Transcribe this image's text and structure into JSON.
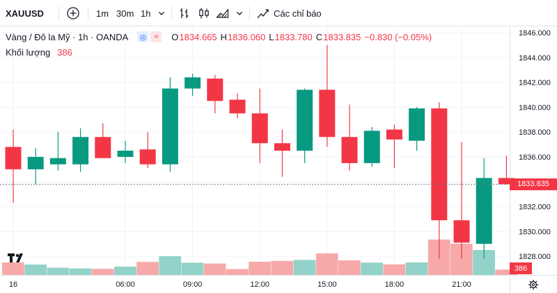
{
  "toolbar": {
    "symbol": "XAUUSD",
    "add_symbol_icon": "plus-circle-icon",
    "intervals": [
      "1m",
      "30m",
      "1h"
    ],
    "interval_menu_icon": "chevron-down-icon",
    "chart_type_icons": [
      "bar-chart-icon",
      "candles-icon",
      "area-chart-icon"
    ],
    "chart_type_menu_icon": "chevron-down-icon",
    "indicators_icon": "indicators-icon",
    "indicators_label": "Các chỉ báo"
  },
  "legend": {
    "title": "Vàng / Đô la Mỹ · 1h · OANDA",
    "badges": [
      "◎",
      "≈"
    ],
    "ohlc": [
      {
        "label": "O",
        "value": "1834.665"
      },
      {
        "label": "H",
        "value": "1836.060"
      },
      {
        "label": "L",
        "value": "1833.780"
      },
      {
        "label": "C",
        "value": "1833.835"
      }
    ],
    "change": "−0.830 (−0.05%)",
    "volume_label": "Khối lượng",
    "volume_value": "386"
  },
  "price_axis": {
    "current_price": "1833.835",
    "volume_tag": "386",
    "settings_icon": "gear-icon"
  },
  "logo": "TV",
  "colors": {
    "up": "#089981",
    "down": "#f23645",
    "up_volume": "#92d2c9",
    "down_volume": "#f7a9a9",
    "current_price_line": "#787b86",
    "accent": "#2962ff"
  },
  "chart_data": {
    "type": "candlestick",
    "ylim": [
      1826.5,
      1846.5
    ],
    "yticks": [
      "1828.000",
      "1830.000",
      "1832.000",
      "1834.000",
      "1836.000",
      "1838.000",
      "1840.000",
      "1842.000",
      "1844.000",
      "1846.000"
    ],
    "xticks": [
      {
        "index": 0,
        "label": "16"
      },
      {
        "index": 5,
        "label": "06:00"
      },
      {
        "index": 8,
        "label": "09:00"
      },
      {
        "index": 11,
        "label": "12:00"
      },
      {
        "index": 14,
        "label": "15:00"
      },
      {
        "index": 17,
        "label": "18:00"
      },
      {
        "index": 20,
        "label": "21:00"
      }
    ],
    "candles": [
      {
        "o": 1836.8,
        "h": 1838.2,
        "l": 1832.3,
        "c": 1835.0,
        "v": 900
      },
      {
        "o": 1835.0,
        "h": 1836.7,
        "l": 1833.8,
        "c": 1836.0,
        "v": 750
      },
      {
        "o": 1835.4,
        "h": 1838.0,
        "l": 1834.9,
        "c": 1835.9,
        "v": 520
      },
      {
        "o": 1835.4,
        "h": 1838.3,
        "l": 1834.8,
        "c": 1837.6,
        "v": 470
      },
      {
        "o": 1837.6,
        "h": 1838.7,
        "l": 1835.9,
        "c": 1835.9,
        "v": 440
      },
      {
        "o": 1836.0,
        "h": 1837.3,
        "l": 1835.5,
        "c": 1836.5,
        "v": 600
      },
      {
        "o": 1836.6,
        "h": 1838.0,
        "l": 1835.1,
        "c": 1835.4,
        "v": 940
      },
      {
        "o": 1835.4,
        "h": 1842.4,
        "l": 1834.8,
        "c": 1841.5,
        "v": 1350
      },
      {
        "o": 1841.5,
        "h": 1842.7,
        "l": 1840.9,
        "c": 1842.4,
        "v": 880
      },
      {
        "o": 1842.3,
        "h": 1842.6,
        "l": 1839.5,
        "c": 1840.5,
        "v": 820
      },
      {
        "o": 1840.6,
        "h": 1841.1,
        "l": 1839.1,
        "c": 1839.5,
        "v": 430
      },
      {
        "o": 1839.5,
        "h": 1841.5,
        "l": 1835.5,
        "c": 1837.1,
        "v": 950
      },
      {
        "o": 1837.1,
        "h": 1838.2,
        "l": 1834.4,
        "c": 1836.5,
        "v": 1010
      },
      {
        "o": 1836.5,
        "h": 1841.5,
        "l": 1835.5,
        "c": 1841.4,
        "v": 1080
      },
      {
        "o": 1841.4,
        "h": 1845.0,
        "l": 1836.8,
        "c": 1837.6,
        "v": 1550
      },
      {
        "o": 1837.6,
        "h": 1840.2,
        "l": 1834.9,
        "c": 1835.5,
        "v": 1050
      },
      {
        "o": 1835.5,
        "h": 1838.4,
        "l": 1835.2,
        "c": 1838.1,
        "v": 890
      },
      {
        "o": 1838.2,
        "h": 1838.6,
        "l": 1835.1,
        "c": 1837.4,
        "v": 760
      },
      {
        "o": 1837.3,
        "h": 1840.0,
        "l": 1836.5,
        "c": 1839.9,
        "v": 900
      },
      {
        "o": 1839.9,
        "h": 1840.4,
        "l": 1827.8,
        "c": 1830.9,
        "v": 2550
      },
      {
        "o": 1830.9,
        "h": 1837.2,
        "l": 1827.8,
        "c": 1829.1,
        "v": 2250
      },
      {
        "o": 1829.0,
        "h": 1835.9,
        "l": 1827.8,
        "c": 1834.3,
        "v": 1800
      },
      {
        "o": 1834.3,
        "h": 1836.1,
        "l": 1833.8,
        "c": 1833.8,
        "v": 386
      }
    ]
  }
}
